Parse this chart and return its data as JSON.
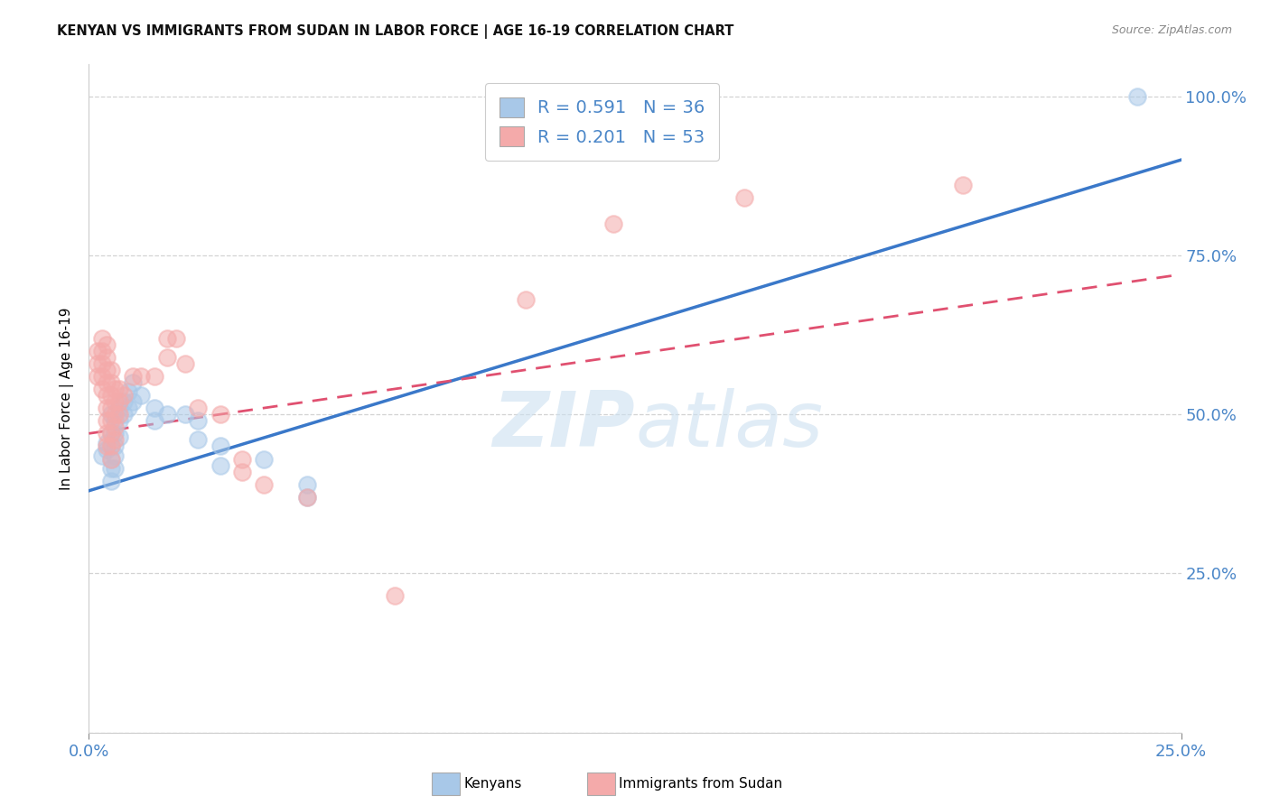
{
  "title": "KENYAN VS IMMIGRANTS FROM SUDAN IN LABOR FORCE | AGE 16-19 CORRELATION CHART",
  "source": "Source: ZipAtlas.com",
  "ylabel": "In Labor Force | Age 16-19",
  "xlim": [
    0.0,
    0.25
  ],
  "ylim": [
    0.0,
    1.05
  ],
  "ytick_values": [
    0.0,
    0.25,
    0.5,
    0.75,
    1.0
  ],
  "xtick_values": [
    0.0,
    0.25
  ],
  "xtick_labels": [
    "0.0%",
    "25.0%"
  ],
  "blue_color": "#a8c8e8",
  "pink_color": "#f4aaaa",
  "blue_line_color": "#3a78c9",
  "pink_line_color": "#e05070",
  "axis_color": "#4a86c8",
  "grid_color": "#c8c8c8",
  "kenyans_scatter": [
    [
      0.003,
      0.435
    ],
    [
      0.004,
      0.455
    ],
    [
      0.004,
      0.445
    ],
    [
      0.005,
      0.5
    ],
    [
      0.005,
      0.47
    ],
    [
      0.005,
      0.45
    ],
    [
      0.005,
      0.43
    ],
    [
      0.005,
      0.415
    ],
    [
      0.005,
      0.395
    ],
    [
      0.006,
      0.49
    ],
    [
      0.006,
      0.47
    ],
    [
      0.006,
      0.45
    ],
    [
      0.006,
      0.435
    ],
    [
      0.006,
      0.415
    ],
    [
      0.007,
      0.51
    ],
    [
      0.007,
      0.49
    ],
    [
      0.007,
      0.465
    ],
    [
      0.008,
      0.52
    ],
    [
      0.008,
      0.5
    ],
    [
      0.009,
      0.535
    ],
    [
      0.009,
      0.51
    ],
    [
      0.01,
      0.55
    ],
    [
      0.01,
      0.52
    ],
    [
      0.012,
      0.53
    ],
    [
      0.015,
      0.51
    ],
    [
      0.015,
      0.49
    ],
    [
      0.018,
      0.5
    ],
    [
      0.022,
      0.5
    ],
    [
      0.025,
      0.49
    ],
    [
      0.025,
      0.46
    ],
    [
      0.03,
      0.45
    ],
    [
      0.03,
      0.42
    ],
    [
      0.04,
      0.43
    ],
    [
      0.05,
      0.39
    ],
    [
      0.05,
      0.37
    ],
    [
      0.24,
      1.0
    ]
  ],
  "sudan_scatter": [
    [
      0.002,
      0.6
    ],
    [
      0.002,
      0.58
    ],
    [
      0.002,
      0.56
    ],
    [
      0.003,
      0.62
    ],
    [
      0.003,
      0.6
    ],
    [
      0.003,
      0.58
    ],
    [
      0.003,
      0.56
    ],
    [
      0.003,
      0.54
    ],
    [
      0.004,
      0.61
    ],
    [
      0.004,
      0.59
    ],
    [
      0.004,
      0.57
    ],
    [
      0.004,
      0.55
    ],
    [
      0.004,
      0.53
    ],
    [
      0.004,
      0.51
    ],
    [
      0.004,
      0.49
    ],
    [
      0.004,
      0.47
    ],
    [
      0.004,
      0.45
    ],
    [
      0.005,
      0.57
    ],
    [
      0.005,
      0.55
    ],
    [
      0.005,
      0.53
    ],
    [
      0.005,
      0.51
    ],
    [
      0.005,
      0.49
    ],
    [
      0.005,
      0.47
    ],
    [
      0.005,
      0.45
    ],
    [
      0.005,
      0.43
    ],
    [
      0.006,
      0.54
    ],
    [
      0.006,
      0.52
    ],
    [
      0.006,
      0.5
    ],
    [
      0.006,
      0.48
    ],
    [
      0.006,
      0.46
    ],
    [
      0.007,
      0.54
    ],
    [
      0.007,
      0.52
    ],
    [
      0.007,
      0.5
    ],
    [
      0.008,
      0.53
    ],
    [
      0.01,
      0.56
    ],
    [
      0.012,
      0.56
    ],
    [
      0.015,
      0.56
    ],
    [
      0.018,
      0.62
    ],
    [
      0.018,
      0.59
    ],
    [
      0.02,
      0.62
    ],
    [
      0.022,
      0.58
    ],
    [
      0.025,
      0.51
    ],
    [
      0.03,
      0.5
    ],
    [
      0.035,
      0.43
    ],
    [
      0.035,
      0.41
    ],
    [
      0.04,
      0.39
    ],
    [
      0.05,
      0.37
    ],
    [
      0.07,
      0.215
    ],
    [
      0.1,
      0.68
    ],
    [
      0.12,
      0.8
    ],
    [
      0.15,
      0.84
    ],
    [
      0.2,
      0.86
    ]
  ],
  "blue_line": {
    "x0": 0.0,
    "y0": 0.38,
    "x1": 0.25,
    "y1": 0.9
  },
  "pink_line": {
    "x0": 0.0,
    "y0": 0.47,
    "x1": 0.25,
    "y1": 0.72
  }
}
